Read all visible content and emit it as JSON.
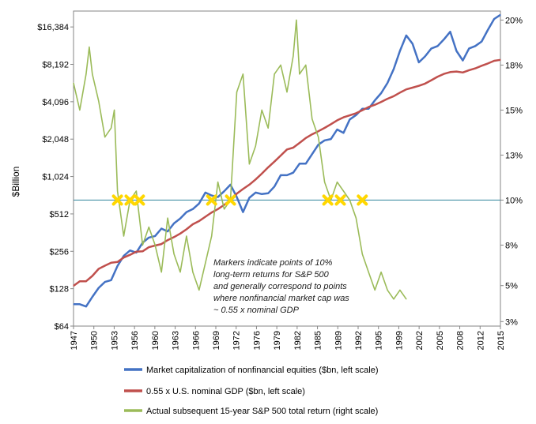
{
  "chart_data": {
    "type": "line",
    "title": "",
    "xlabel": "",
    "ylabel": "$Billion",
    "xlim": [
      1947,
      2015
    ],
    "ylim_left": [
      64,
      22000
    ],
    "left_scale": "log2",
    "ylim_right": [
      0.03,
      0.205
    ],
    "x_ticks": [
      "1947",
      "1950",
      "1953",
      "1956",
      "1960",
      "1963",
      "1966",
      "1969",
      "1972",
      "1976",
      "1979",
      "1982",
      "1985",
      "1989",
      "1992",
      "1995",
      "1999",
      "2002",
      "2005",
      "2008",
      "2012",
      "2015"
    ],
    "left_ticks": [
      {
        "v": 64,
        "label": "$64"
      },
      {
        "v": 128,
        "label": "$128"
      },
      {
        "v": 256,
        "label": "$256"
      },
      {
        "v": 512,
        "label": "$512"
      },
      {
        "v": 1024,
        "label": "$1,024"
      },
      {
        "v": 2048,
        "label": "$2,048"
      },
      {
        "v": 4096,
        "label": "$4,096"
      },
      {
        "v": 8192,
        "label": "$8,192"
      },
      {
        "v": 16384,
        "label": "$16,384"
      }
    ],
    "right_ticks": [
      {
        "v": 0.0325,
        "label": "3%"
      },
      {
        "v": 0.0525,
        "label": "5%"
      },
      {
        "v": 0.075,
        "label": "8%"
      },
      {
        "v": 0.1,
        "label": "10%"
      },
      {
        "v": 0.125,
        "label": "13%"
      },
      {
        "v": 0.15,
        "label": "15%"
      },
      {
        "v": 0.175,
        "label": "18%"
      },
      {
        "v": 0.2,
        "label": "20%"
      }
    ],
    "reference_line_right": 0.1,
    "series": [
      {
        "name": "Market capitalization of nonfinancial equities ($bn, left scale)",
        "axis": "left",
        "color": "#4472C4",
        "x": [
          1947,
          1948,
          1949,
          1950,
          1951,
          1952,
          1953,
          1954,
          1955,
          1956,
          1957,
          1958,
          1959,
          1960,
          1961,
          1962,
          1963,
          1964,
          1965,
          1966,
          1967,
          1968,
          1969,
          1970,
          1971,
          1972,
          1973,
          1974,
          1975,
          1976,
          1977,
          1978,
          1979,
          1980,
          1981,
          1982,
          1983,
          1984,
          1985,
          1986,
          1987,
          1988,
          1989,
          1990,
          1991,
          1992,
          1993,
          1994,
          1995,
          1996,
          1997,
          1998,
          1999,
          2000,
          2001,
          2002,
          2003,
          2004,
          2005,
          2006,
          2007,
          2008,
          2009,
          2010,
          2011,
          2012,
          2013,
          2014,
          2015
        ],
        "y": [
          96,
          96,
          92,
          110,
          130,
          145,
          150,
          195,
          235,
          260,
          250,
          300,
          330,
          340,
          390,
          370,
          430,
          470,
          530,
          560,
          620,
          760,
          720,
          700,
          780,
          880,
          700,
          530,
          690,
          760,
          740,
          750,
          850,
          1050,
          1050,
          1100,
          1300,
          1300,
          1550,
          1850,
          2000,
          2050,
          2450,
          2300,
          2950,
          3200,
          3600,
          3600,
          4200,
          4800,
          5800,
          7500,
          10500,
          14000,
          12000,
          8500,
          9500,
          11000,
          11500,
          13000,
          15000,
          10500,
          8800,
          11000,
          11500,
          12500,
          15500,
          19000,
          20500
        ]
      },
      {
        "name": "0.55 x U.S. nominal GDP ($bn, left scale)",
        "axis": "left",
        "color": "#C0504D",
        "x": [
          1947,
          1948,
          1949,
          1950,
          1951,
          1952,
          1953,
          1954,
          1955,
          1956,
          1957,
          1958,
          1959,
          1960,
          1961,
          1962,
          1963,
          1964,
          1965,
          1966,
          1967,
          1968,
          1969,
          1970,
          1971,
          1972,
          1973,
          1974,
          1975,
          1976,
          1977,
          1978,
          1979,
          1980,
          1981,
          1982,
          1983,
          1984,
          1985,
          1986,
          1987,
          1988,
          1989,
          1990,
          1991,
          1992,
          1993,
          1994,
          1995,
          1996,
          1997,
          1998,
          1999,
          2000,
          2001,
          2002,
          2003,
          2004,
          2005,
          2006,
          2007,
          2008,
          2009,
          2010,
          2011,
          2012,
          2013,
          2014,
          2015
        ],
        "y": [
          135,
          147,
          147,
          162,
          185,
          196,
          207,
          210,
          228,
          240,
          254,
          256,
          276,
          285,
          293,
          315,
          333,
          356,
          385,
          423,
          448,
          486,
          526,
          560,
          605,
          665,
          745,
          812,
          880,
          970,
          1080,
          1215,
          1350,
          1510,
          1690,
          1750,
          1910,
          2090,
          2240,
          2370,
          2520,
          2700,
          2900,
          3070,
          3180,
          3310,
          3500,
          3710,
          3870,
          4080,
          4330,
          4540,
          4850,
          5150,
          5320,
          5500,
          5730,
          6100,
          6520,
          6860,
          7100,
          7170,
          7050,
          7350,
          7600,
          7980,
          8330,
          8750,
          8900
        ]
      },
      {
        "name": "Actual subsequent 15-year S&P 500 total return (right scale)",
        "axis": "right",
        "color": "#9BBB59",
        "x": [
          1947,
          1948,
          1949,
          1949.5,
          1950,
          1951,
          1952,
          1953,
          1953.5,
          1954,
          1955,
          1956,
          1957,
          1958,
          1959,
          1960,
          1961,
          1962,
          1963,
          1964,
          1965,
          1966,
          1967,
          1968,
          1969,
          1970,
          1971,
          1972,
          1973,
          1974,
          1975,
          1976,
          1977,
          1978,
          1979,
          1980,
          1981,
          1982,
          1982.5,
          1983,
          1984,
          1985,
          1986,
          1987,
          1988,
          1989,
          1990,
          1991,
          1992,
          1993,
          1994,
          1995,
          1996,
          1997,
          1998,
          1999,
          2000
        ],
        "y": [
          0.165,
          0.15,
          0.17,
          0.185,
          0.17,
          0.155,
          0.135,
          0.14,
          0.15,
          0.105,
          0.08,
          0.1,
          0.105,
          0.075,
          0.085,
          0.075,
          0.06,
          0.09,
          0.07,
          0.06,
          0.08,
          0.06,
          0.05,
          0.065,
          0.08,
          0.11,
          0.095,
          0.1,
          0.16,
          0.17,
          0.12,
          0.13,
          0.15,
          0.14,
          0.17,
          0.175,
          0.16,
          0.18,
          0.2,
          0.17,
          0.175,
          0.145,
          0.135,
          0.11,
          0.1,
          0.11,
          0.105,
          0.1,
          0.09,
          0.07,
          0.06,
          0.05,
          0.06,
          0.05,
          0.045,
          0.05,
          0.045
        ]
      }
    ],
    "markers": {
      "color": "#FFD700",
      "x": [
        1954,
        1956,
        1957.5,
        1969,
        1972,
        1987.5,
        1989.5,
        1993
      ],
      "y_right": [
        0.1,
        0.1,
        0.1,
        0.1,
        0.1,
        0.1,
        0.1,
        0.1
      ]
    },
    "annotation": [
      "Markers indicate points of 10%",
      "long-term returns for S&P 500",
      "and generally correspond to points",
      "where nonfinancial market cap was",
      "~ 0.55 x nominal GDP"
    ],
    "legend_position": "bottom"
  }
}
